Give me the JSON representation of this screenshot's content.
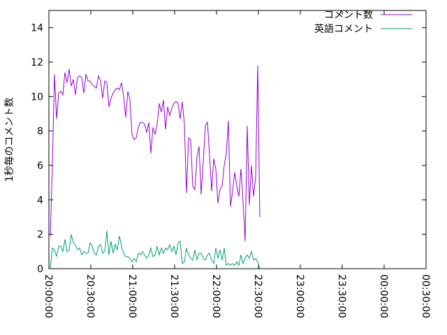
{
  "chart_data": {
    "type": "line",
    "title": "",
    "xlabel": "",
    "ylabel": "1秒毎のコメント数",
    "xlim": [
      "20:00:00",
      "00:30:00"
    ],
    "ylim": [
      0,
      15
    ],
    "x_ticks": [
      "20:00:00",
      "20:30:00",
      "21:00:00",
      "21:30:00",
      "22:00:00",
      "22:30:00",
      "23:00:00",
      "23:30:00",
      "00:00:00",
      "00:30:00"
    ],
    "y_ticks": [
      "0",
      "2",
      "4",
      "6",
      "8",
      "10",
      "12",
      "14"
    ],
    "grid": false,
    "legend_position": "top-right",
    "series": [
      {
        "name": "コメント数",
        "color": "#9400d3",
        "points": [
          [
            "20:01:00",
            1.9
          ],
          [
            "20:02:30",
            6.0
          ],
          [
            "20:04:00",
            11.3
          ],
          [
            "20:05:30",
            8.7
          ],
          [
            "20:07:00",
            10.2
          ],
          [
            "20:08:30",
            10.3
          ],
          [
            "20:10:00",
            10.1
          ],
          [
            "20:11:30",
            11.4
          ],
          [
            "20:13:00",
            10.8
          ],
          [
            "20:14:30",
            11.6
          ],
          [
            "20:16:00",
            10.6
          ],
          [
            "20:17:30",
            11.0
          ],
          [
            "20:19:00",
            10.1
          ],
          [
            "20:20:30",
            11.1
          ],
          [
            "20:22:00",
            11.2
          ],
          [
            "20:23:30",
            11.1
          ],
          [
            "20:25:00",
            10.2
          ],
          [
            "20:26:30",
            11.3
          ],
          [
            "20:28:00",
            10.9
          ],
          [
            "20:29:30",
            10.9
          ],
          [
            "20:31:00",
            10.7
          ],
          [
            "20:32:30",
            10.6
          ],
          [
            "20:34:00",
            10.5
          ],
          [
            "20:35:30",
            11.2
          ],
          [
            "20:37:00",
            10.9
          ],
          [
            "20:38:30",
            9.9
          ],
          [
            "20:40:00",
            10.9
          ],
          [
            "20:41:30",
            10.8
          ],
          [
            "20:43:00",
            9.4
          ],
          [
            "20:44:30",
            9.9
          ],
          [
            "20:46:00",
            10.2
          ],
          [
            "20:47:30",
            10.4
          ],
          [
            "20:49:00",
            10.5
          ],
          [
            "20:50:30",
            10.4
          ],
          [
            "20:52:00",
            10.8
          ],
          [
            "20:53:30",
            10.0
          ],
          [
            "20:55:00",
            8.8
          ],
          [
            "20:56:30",
            10.3
          ],
          [
            "20:58:00",
            9.8
          ],
          [
            "20:59:30",
            7.8
          ],
          [
            "21:01:00",
            7.5
          ],
          [
            "21:02:30",
            7.6
          ],
          [
            "21:04:00",
            8.2
          ],
          [
            "21:05:30",
            8.5
          ],
          [
            "21:07:00",
            8.5
          ],
          [
            "21:08:30",
            8.4
          ],
          [
            "21:10:00",
            7.9
          ],
          [
            "21:11:30",
            8.5
          ],
          [
            "21:13:00",
            6.7
          ],
          [
            "21:14:30",
            8.2
          ],
          [
            "21:16:00",
            7.8
          ],
          [
            "21:17:30",
            8.4
          ],
          [
            "21:19:00",
            9.6
          ],
          [
            "21:20:30",
            9.1
          ],
          [
            "21:22:00",
            9.8
          ],
          [
            "21:23:30",
            8.1
          ],
          [
            "21:25:00",
            9.4
          ],
          [
            "21:26:30",
            8.9
          ],
          [
            "21:28:00",
            9.3
          ],
          [
            "21:29:30",
            9.6
          ],
          [
            "21:31:00",
            9.7
          ],
          [
            "21:32:30",
            9.6
          ],
          [
            "21:34:00",
            8.7
          ],
          [
            "21:35:30",
            9.7
          ],
          [
            "21:37:00",
            8.4
          ],
          [
            "21:38:30",
            4.4
          ],
          [
            "21:40:00",
            7.6
          ],
          [
            "21:41:30",
            7.5
          ],
          [
            "21:43:00",
            4.8
          ],
          [
            "21:44:30",
            4.6
          ],
          [
            "21:46:00",
            6.5
          ],
          [
            "21:47:30",
            7.1
          ],
          [
            "21:49:00",
            4.3
          ],
          [
            "21:50:30",
            6.2
          ],
          [
            "21:52:00",
            8.3
          ],
          [
            "21:53:30",
            8.5
          ],
          [
            "21:55:00",
            6.6
          ],
          [
            "21:56:30",
            4.5
          ],
          [
            "21:58:00",
            6.4
          ],
          [
            "21:59:30",
            5.8
          ],
          [
            "22:01:00",
            3.8
          ],
          [
            "22:02:30",
            4.6
          ],
          [
            "22:04:00",
            4.8
          ],
          [
            "22:05:30",
            6.0
          ],
          [
            "22:07:00",
            6.7
          ],
          [
            "22:08:30",
            8.6
          ],
          [
            "22:10:00",
            3.6
          ],
          [
            "22:11:30",
            4.5
          ],
          [
            "22:13:00",
            5.6
          ],
          [
            "22:14:30",
            4.8
          ],
          [
            "22:16:00",
            4.2
          ],
          [
            "22:17:30",
            5.8
          ],
          [
            "22:19:00",
            3.9
          ],
          [
            "22:20:30",
            1.6
          ],
          [
            "22:22:00",
            8.3
          ],
          [
            "22:23:30",
            3.7
          ],
          [
            "22:25:00",
            6.0
          ],
          [
            "22:26:30",
            4.2
          ],
          [
            "22:28:00",
            5.3
          ],
          [
            "22:29:30",
            11.8
          ],
          [
            "22:31:00",
            3.0
          ]
        ]
      },
      {
        "name": "英語コメント",
        "color": "#009e73",
        "points": [
          [
            "20:01:00",
            0.0
          ],
          [
            "20:02:30",
            1.2
          ],
          [
            "20:04:00",
            1.1
          ],
          [
            "20:05:30",
            0.7
          ],
          [
            "20:07:00",
            1.3
          ],
          [
            "20:08:30",
            1.3
          ],
          [
            "20:10:00",
            1.0
          ],
          [
            "20:11:30",
            1.7
          ],
          [
            "20:13:00",
            1.0
          ],
          [
            "20:14:30",
            1.1
          ],
          [
            "20:16:00",
            2.0
          ],
          [
            "20:17:30",
            1.5
          ],
          [
            "20:19:00",
            1.4
          ],
          [
            "20:20:30",
            1.1
          ],
          [
            "20:22:00",
            1.2
          ],
          [
            "20:23:30",
            0.8
          ],
          [
            "20:25:00",
            1.0
          ],
          [
            "20:26:30",
            0.9
          ],
          [
            "20:28:00",
            0.9
          ],
          [
            "20:29:30",
            1.5
          ],
          [
            "20:31:00",
            1.3
          ],
          [
            "20:32:30",
            0.9
          ],
          [
            "20:34:00",
            0.8
          ],
          [
            "20:35:30",
            1.3
          ],
          [
            "20:37:00",
            1.4
          ],
          [
            "20:38:30",
            0.9
          ],
          [
            "20:40:00",
            1.0
          ],
          [
            "20:41:30",
            2.2
          ],
          [
            "20:43:00",
            0.8
          ],
          [
            "20:44:30",
            1.6
          ],
          [
            "20:46:00",
            0.9
          ],
          [
            "20:47:30",
            1.4
          ],
          [
            "20:49:00",
            1.1
          ],
          [
            "20:50:30",
            1.9
          ],
          [
            "20:52:00",
            1.3
          ],
          [
            "20:53:30",
            0.9
          ],
          [
            "20:55:00",
            0.7
          ],
          [
            "20:56:30",
            0.7
          ],
          [
            "20:58:00",
            0.6
          ],
          [
            "20:59:30",
            0.4
          ],
          [
            "21:01:00",
            0.6
          ],
          [
            "21:02:30",
            0.4
          ],
          [
            "21:04:00",
            0.9
          ],
          [
            "21:05:30",
            0.8
          ],
          [
            "21:07:00",
            1.0
          ],
          [
            "21:08:30",
            0.8
          ],
          [
            "21:10:00",
            0.6
          ],
          [
            "21:11:30",
            0.8
          ],
          [
            "21:13:00",
            1.2
          ],
          [
            "21:14:30",
            0.7
          ],
          [
            "21:16:00",
            0.8
          ],
          [
            "21:17:30",
            1.3
          ],
          [
            "21:19:00",
            0.8
          ],
          [
            "21:20:30",
            1.2
          ],
          [
            "21:22:00",
            0.9
          ],
          [
            "21:23:30",
            1.2
          ],
          [
            "21:25:00",
            1.1
          ],
          [
            "21:26:30",
            1.4
          ],
          [
            "21:28:00",
            1.0
          ],
          [
            "21:29:30",
            1.3
          ],
          [
            "21:31:00",
            0.8
          ],
          [
            "21:32:30",
            1.5
          ],
          [
            "21:34:00",
            1.6
          ],
          [
            "21:35:30",
            0.3
          ],
          [
            "21:37:00",
            0.4
          ],
          [
            "21:38:30",
            1.2
          ],
          [
            "21:40:00",
            0.8
          ],
          [
            "21:41:30",
            0.6
          ],
          [
            "21:43:00",
            0.5
          ],
          [
            "21:44:30",
            1.1
          ],
          [
            "21:46:00",
            0.5
          ],
          [
            "21:47:30",
            0.9
          ],
          [
            "21:49:00",
            0.9
          ],
          [
            "21:50:30",
            0.6
          ],
          [
            "21:52:00",
            0.5
          ],
          [
            "21:53:30",
            0.8
          ],
          [
            "21:55:00",
            0.9
          ],
          [
            "21:56:30",
            0.5
          ],
          [
            "21:58:00",
            0.3
          ],
          [
            "21:59:30",
            1.2
          ],
          [
            "22:01:00",
            0.6
          ],
          [
            "22:02:30",
            1.1
          ],
          [
            "22:04:00",
            0.5
          ],
          [
            "22:05:30",
            1.2
          ],
          [
            "22:07:00",
            0.2
          ],
          [
            "22:08:30",
            0.3
          ],
          [
            "22:10:00",
            0.2
          ],
          [
            "22:11:30",
            0.3
          ],
          [
            "22:13:00",
            0.2
          ],
          [
            "22:14:30",
            0.4
          ],
          [
            "22:16:00",
            0.2
          ],
          [
            "22:17:30",
            0.8
          ],
          [
            "22:19:00",
            0.3
          ],
          [
            "22:20:30",
            0.6
          ],
          [
            "22:22:00",
            0.8
          ],
          [
            "22:23:30",
            0.6
          ],
          [
            "22:25:00",
            1.0
          ],
          [
            "22:26:30",
            0.5
          ],
          [
            "22:28:00",
            0.6
          ],
          [
            "22:29:30",
            0.4
          ],
          [
            "22:31:00",
            0.0
          ]
        ]
      }
    ]
  }
}
